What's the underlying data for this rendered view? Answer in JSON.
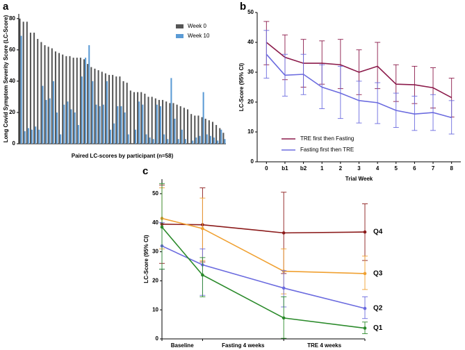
{
  "chart_data": [
    {
      "type": "bar",
      "panel": "a",
      "y_label": "Long Covid Symptom Severity Score (LC-Score)",
      "x_label": "Paired LC-scores by participant (n=58)",
      "categories": [
        null,
        null,
        null,
        null,
        null,
        null,
        null,
        null,
        null,
        null,
        null,
        null,
        null,
        null,
        null,
        null,
        null,
        null,
        null,
        null,
        null,
        null,
        null,
        null,
        null,
        null,
        null,
        null,
        null,
        null,
        null,
        null,
        null,
        null,
        null,
        null,
        null,
        null,
        null,
        null,
        null,
        null,
        null,
        null,
        null,
        null,
        null,
        null,
        null,
        null,
        null,
        null,
        null,
        null,
        null,
        null,
        null,
        null
      ],
      "series": [
        {
          "name": "Week 0",
          "color": "#555555",
          "values": [
            80,
            78,
            78,
            71,
            71,
            67,
            65,
            63,
            62,
            61,
            59,
            58,
            57,
            56,
            56,
            55,
            55,
            55,
            54,
            51,
            49,
            48,
            47,
            46,
            45,
            44,
            44,
            43,
            43,
            40,
            39,
            34,
            33,
            33,
            33,
            32,
            30,
            30,
            29,
            28,
            28,
            27,
            26,
            26,
            25,
            24,
            23,
            22,
            19,
            18,
            18,
            17,
            16,
            15,
            14,
            12,
            10,
            7
          ]
        },
        {
          "name": "Week 10",
          "color": "#5b9bd5",
          "values": [
            69,
            8,
            10,
            9,
            11,
            9,
            37,
            28,
            29,
            40,
            20,
            6,
            25,
            27,
            22,
            20,
            12,
            43,
            55,
            63,
            40,
            25,
            24,
            25,
            40,
            9,
            13,
            24,
            24,
            20,
            6,
            0,
            9,
            27,
            25,
            6,
            4,
            3,
            25,
            24,
            6,
            3,
            42,
            16,
            3,
            9,
            3,
            0,
            2,
            4,
            5,
            33,
            6,
            5,
            4,
            2,
            9,
            3
          ]
        }
      ],
      "ylim": [
        0,
        83
      ],
      "yticks": [
        0,
        20,
        40,
        60,
        80
      ],
      "legend": "top-right"
    },
    {
      "type": "line",
      "panel": "b",
      "y_label": "LC-Score (95% CI)",
      "x_label": "Trial Week",
      "categories": [
        "0",
        "b1",
        "b2",
        "1",
        "2",
        "3",
        "4",
        "5",
        "6",
        "7",
        "8"
      ],
      "series": [
        {
          "name": "TRE first then Fasting",
          "color": "#8b1a4a",
          "values": [
            40,
            35,
            33,
            33,
            32.5,
            30,
            32,
            26,
            25.8,
            24.8,
            21.5
          ],
          "lower": [
            32.5,
            27.5,
            25,
            26,
            24.5,
            22.5,
            24.5,
            20.2,
            19.5,
            18,
            15
          ],
          "upper": [
            47,
            42.5,
            41,
            40.5,
            41,
            37.5,
            40,
            32.5,
            32,
            31.5,
            28
          ]
        },
        {
          "name": "Fasting first then TRE",
          "color": "#6b6bdf",
          "values": [
            36,
            29,
            29.3,
            25,
            23,
            20.5,
            19.8,
            17.2,
            16,
            16.5,
            14.8
          ],
          "lower": [
            28,
            22,
            22.5,
            17.8,
            14.5,
            13,
            12.8,
            11.5,
            10.5,
            10.5,
            9.3
          ],
          "upper": [
            44,
            36,
            36,
            32.5,
            32,
            27,
            26.5,
            23,
            22,
            22.5,
            20.5
          ]
        }
      ],
      "ylim": [
        0,
        50
      ],
      "yticks": [
        0,
        10,
        20,
        30,
        40,
        50
      ],
      "legend": "bottom-left"
    },
    {
      "type": "line",
      "panel": "c",
      "y_label": "LC-Score (95% CI)",
      "x": [
        0,
        2,
        6,
        10
      ],
      "xlim": [
        0,
        10
      ],
      "xticks": [
        0,
        2,
        6,
        10
      ],
      "period_labels": [
        "Baseline",
        "Fasting 4 weeks",
        "TRE 4 weeks"
      ],
      "series": [
        {
          "name": "Q4",
          "color": "#8b1a1a",
          "values": [
            39.5,
            39.3,
            36.5,
            36.8
          ],
          "lower": [
            26,
            26.5,
            22.5,
            27
          ],
          "upper": [
            53,
            52,
            50.5,
            46.5
          ]
        },
        {
          "name": "Q3",
          "color": "#f0a030",
          "values": [
            41.5,
            38,
            23.3,
            22.5
          ],
          "lower": [
            31,
            27,
            15.5,
            17
          ],
          "upper": [
            52,
            48.5,
            31,
            28.5
          ]
        },
        {
          "name": "Q2",
          "color": "#6b6bdf",
          "values": [
            32,
            25.5,
            17.5,
            10.5
          ],
          "lower": [
            24,
            15,
            11,
            7
          ],
          "upper": [
            40,
            31,
            23.5,
            14.5
          ]
        },
        {
          "name": "Q1",
          "color": "#2a8a2a",
          "values": [
            38.5,
            22,
            7.2,
            3.7
          ],
          "lower": [
            24,
            14.5,
            0.2,
            1.8
          ],
          "upper": [
            53.5,
            28,
            14.5,
            5.8
          ]
        }
      ],
      "ylim": [
        0,
        55
      ],
      "yticks": [
        0,
        10,
        20,
        30,
        40,
        50
      ],
      "legend": "line-end"
    }
  ]
}
